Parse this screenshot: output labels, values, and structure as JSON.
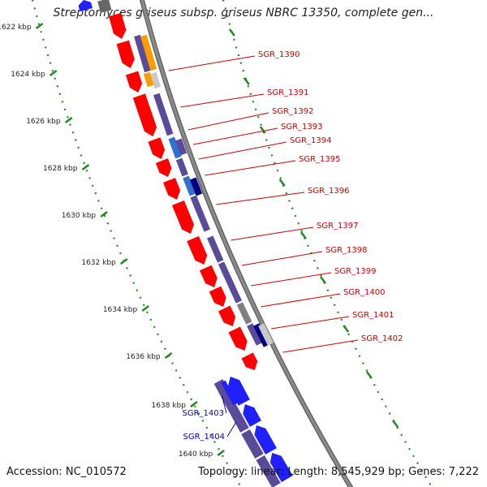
{
  "title": "Streptomyces griseus subsp. griseus NBRC 13350, complete gen...",
  "footer": {
    "accession_label": "Accession:",
    "accession": "NC_010572",
    "topology_label": "Topology:",
    "topology": "linear",
    "length_label": "Length:",
    "length": "8,545,929 bp",
    "genes_label": "Genes:",
    "genes": "7,222"
  },
  "colors": {
    "backbone": "#8a8a8a",
    "dotted_guide": "#1f8a1f",
    "forward_strand": "#ff0000",
    "reverse_strand": "#2020ff",
    "label_forward": "#cc0000",
    "label_reverse": "#0000aa",
    "cog_navy": "#5a4a9a",
    "cog_orange": "#ff9a00",
    "cog_darkblue": "#000080",
    "cog_lightgray": "#c8c8c8",
    "cog_gray": "#808080",
    "cog_steelblue": "#3070d0"
  },
  "scale_labels": [
    "1622 kbp",
    "1624 kbp",
    "1626 kbp",
    "1628 kbp",
    "1630 kbp",
    "1632 kbp",
    "1634 kbp",
    "1636 kbp",
    "1638 kbp",
    "1640 kbp"
  ],
  "gene_labels_forward": [
    "SGR_1390",
    "SGR_1391",
    "SGR_1392",
    "SGR_1393",
    "SGR_1394",
    "SGR_1395",
    "SGR_1396",
    "SGR_1397",
    "SGR_1398",
    "SGR_1399",
    "SGR_1400",
    "SGR_1401",
    "SGR_1402"
  ],
  "gene_labels_reverse": [
    "SGR_1403",
    "SGR_1404"
  ]
}
